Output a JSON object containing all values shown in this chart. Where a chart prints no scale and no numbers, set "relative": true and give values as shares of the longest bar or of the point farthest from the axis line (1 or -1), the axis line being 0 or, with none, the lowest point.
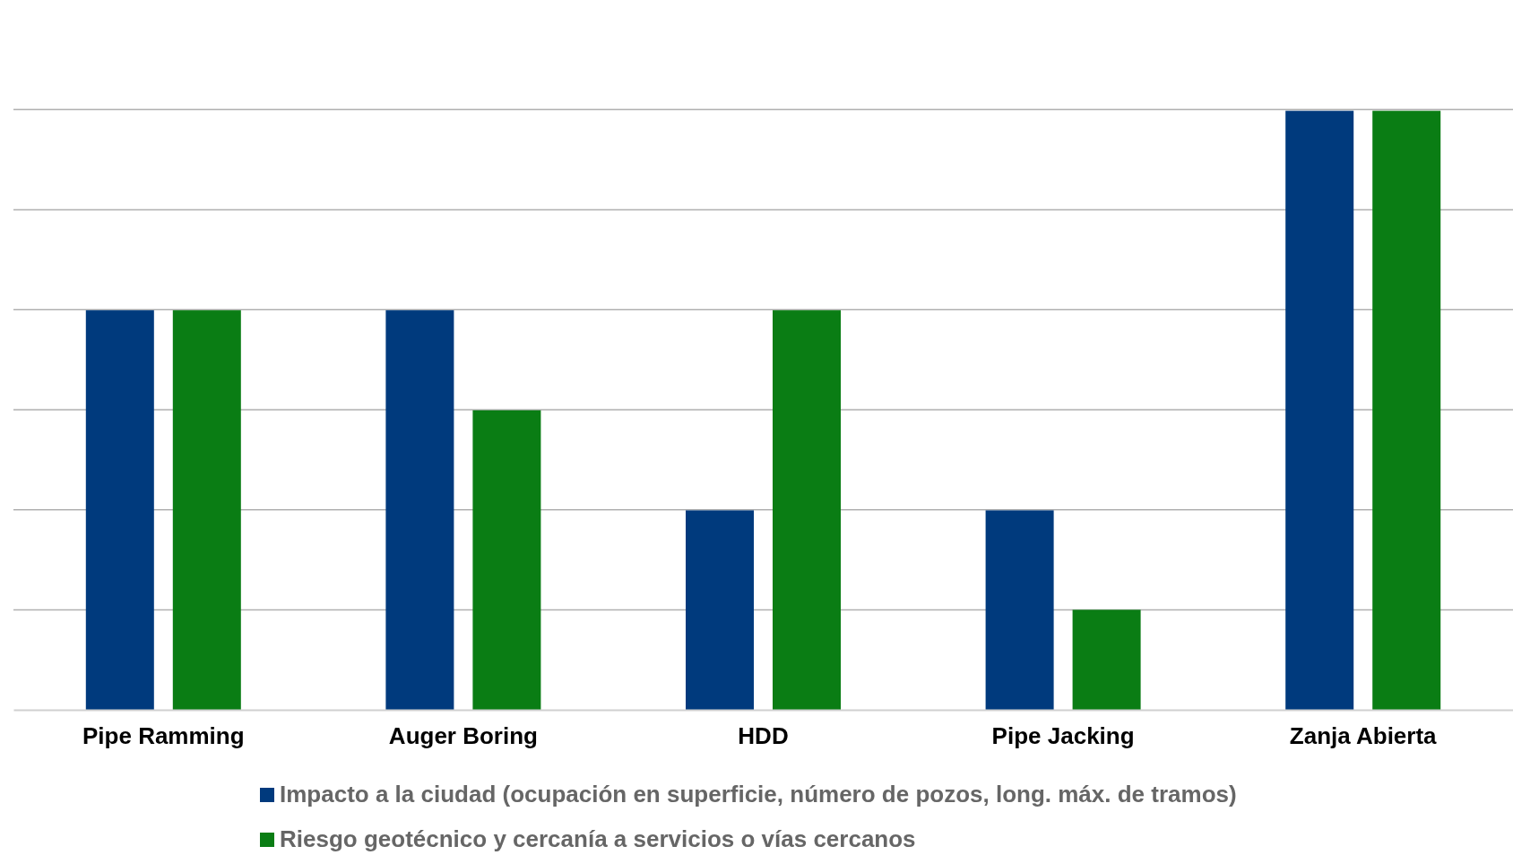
{
  "chart_data": {
    "type": "bar",
    "relative": true,
    "grid": true,
    "legend": "bottom",
    "categories": [
      "Pipe Ramming",
      "Auger Boring",
      "HDD",
      "Pipe Jacking",
      "Zanja Abierta"
    ],
    "series": [
      {
        "name": "Impacto a la ciudad (ocupación en superficie, número de pozos, long. máx. de tramos)",
        "color": "#003a7d",
        "values": [
          0.667,
          0.667,
          0.333,
          0.333,
          1
        ]
      },
      {
        "name": "Riesgo geotécnico y cercanía a servicios o vías cercanos",
        "color": "#0a7d14",
        "values": [
          0.667,
          0.5,
          0.667,
          0.167,
          1
        ]
      }
    ]
  }
}
